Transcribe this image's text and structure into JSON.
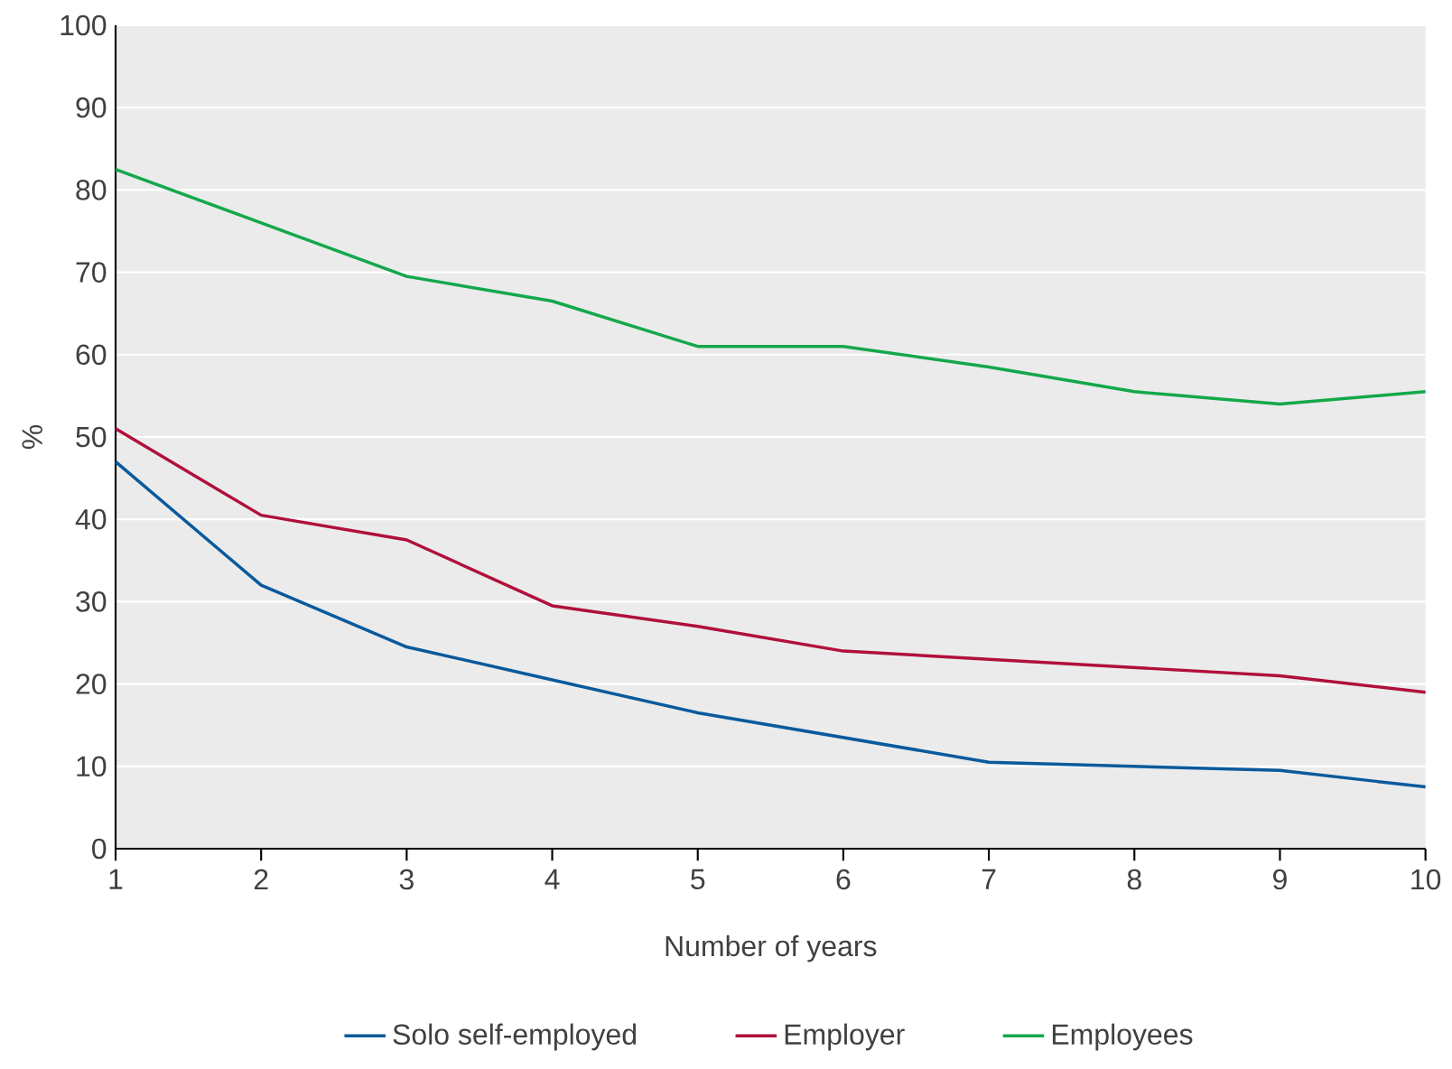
{
  "chart_data": {
    "type": "line",
    "xlabel": "Number of years",
    "ylabel": "%",
    "x": [
      1,
      2,
      3,
      4,
      5,
      6,
      7,
      8,
      9,
      10
    ],
    "xlim": [
      1,
      10
    ],
    "xticks": [
      1,
      2,
      3,
      4,
      5,
      6,
      7,
      8,
      9,
      10
    ],
    "ylim": [
      0,
      100
    ],
    "yticks": [
      0,
      10,
      20,
      30,
      40,
      50,
      60,
      70,
      80,
      90,
      100
    ],
    "grid": "y",
    "legend": "bottom",
    "marker": "none",
    "series": [
      {
        "name": "Solo self-employed",
        "color": "#0a5a9c",
        "values": [
          47,
          32,
          24.5,
          20.5,
          16.5,
          13.5,
          10.5,
          10,
          9.5,
          7.5
        ]
      },
      {
        "name": "Employer",
        "color": "#b0103a",
        "values": [
          51,
          40.5,
          37.5,
          29.5,
          27,
          24,
          23,
          22,
          21,
          19
        ]
      },
      {
        "name": "Employees",
        "color": "#13a84a",
        "values": [
          82.5,
          76,
          69.5,
          66.5,
          61,
          61,
          58.5,
          55.5,
          54,
          55.5
        ]
      }
    ]
  }
}
